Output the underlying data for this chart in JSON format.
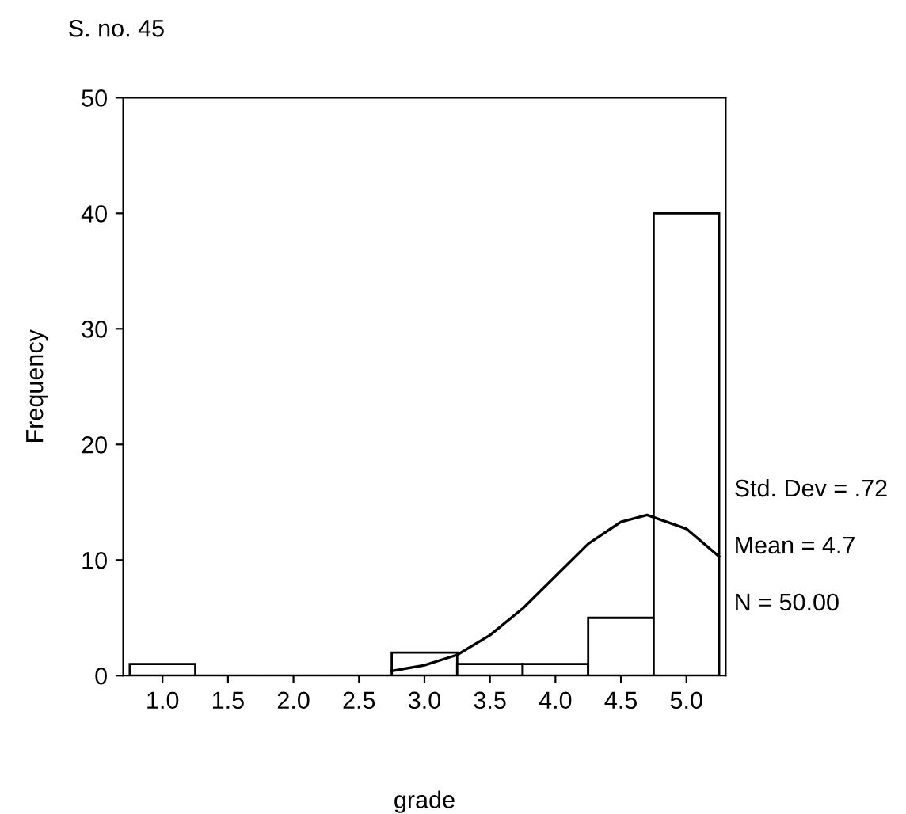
{
  "chart_data": {
    "type": "histogram",
    "title": "S. no. 45",
    "xlabel": "grade",
    "ylabel": "Frequency",
    "bins": [
      0.75,
      1.25,
      1.75,
      2.25,
      2.75,
      3.25,
      3.75,
      4.25,
      4.75,
      5.25
    ],
    "values": [
      1,
      0,
      0,
      0,
      2,
      1,
      1,
      5,
      40
    ],
    "color": "#ffffff",
    "series": [
      {
        "type": "line",
        "color": "#000000",
        "x": [
          2.75,
          3.0,
          3.25,
          3.5,
          3.75,
          4.0,
          4.25,
          4.5,
          4.7,
          5.0,
          5.25
        ],
        "values": [
          0.4,
          0.9,
          1.8,
          3.5,
          5.8,
          8.6,
          11.4,
          13.3,
          13.9,
          12.7,
          10.3
        ]
      }
    ],
    "xlim": [
      0.7,
      5.3
    ],
    "ylim": [
      0,
      50
    ],
    "xticks": [
      {
        "value": 1,
        "label": "1.0"
      },
      {
        "value": 1.5,
        "label": "1.5"
      },
      {
        "value": 2,
        "label": "2.0"
      },
      {
        "value": 2.5,
        "label": "2.5"
      },
      {
        "value": 3,
        "label": "3.0"
      },
      {
        "value": 3.5,
        "label": "3.5"
      },
      {
        "value": 4,
        "label": "4.0"
      },
      {
        "value": 4.5,
        "label": "4.5"
      },
      {
        "value": 5,
        "label": "5.0"
      }
    ],
    "yticks": [
      0,
      10,
      20,
      30,
      40,
      50
    ],
    "grid": false,
    "annotations": [
      "Std. Dev = .72",
      "Mean = 4.7",
      "N = 50.00"
    ]
  }
}
